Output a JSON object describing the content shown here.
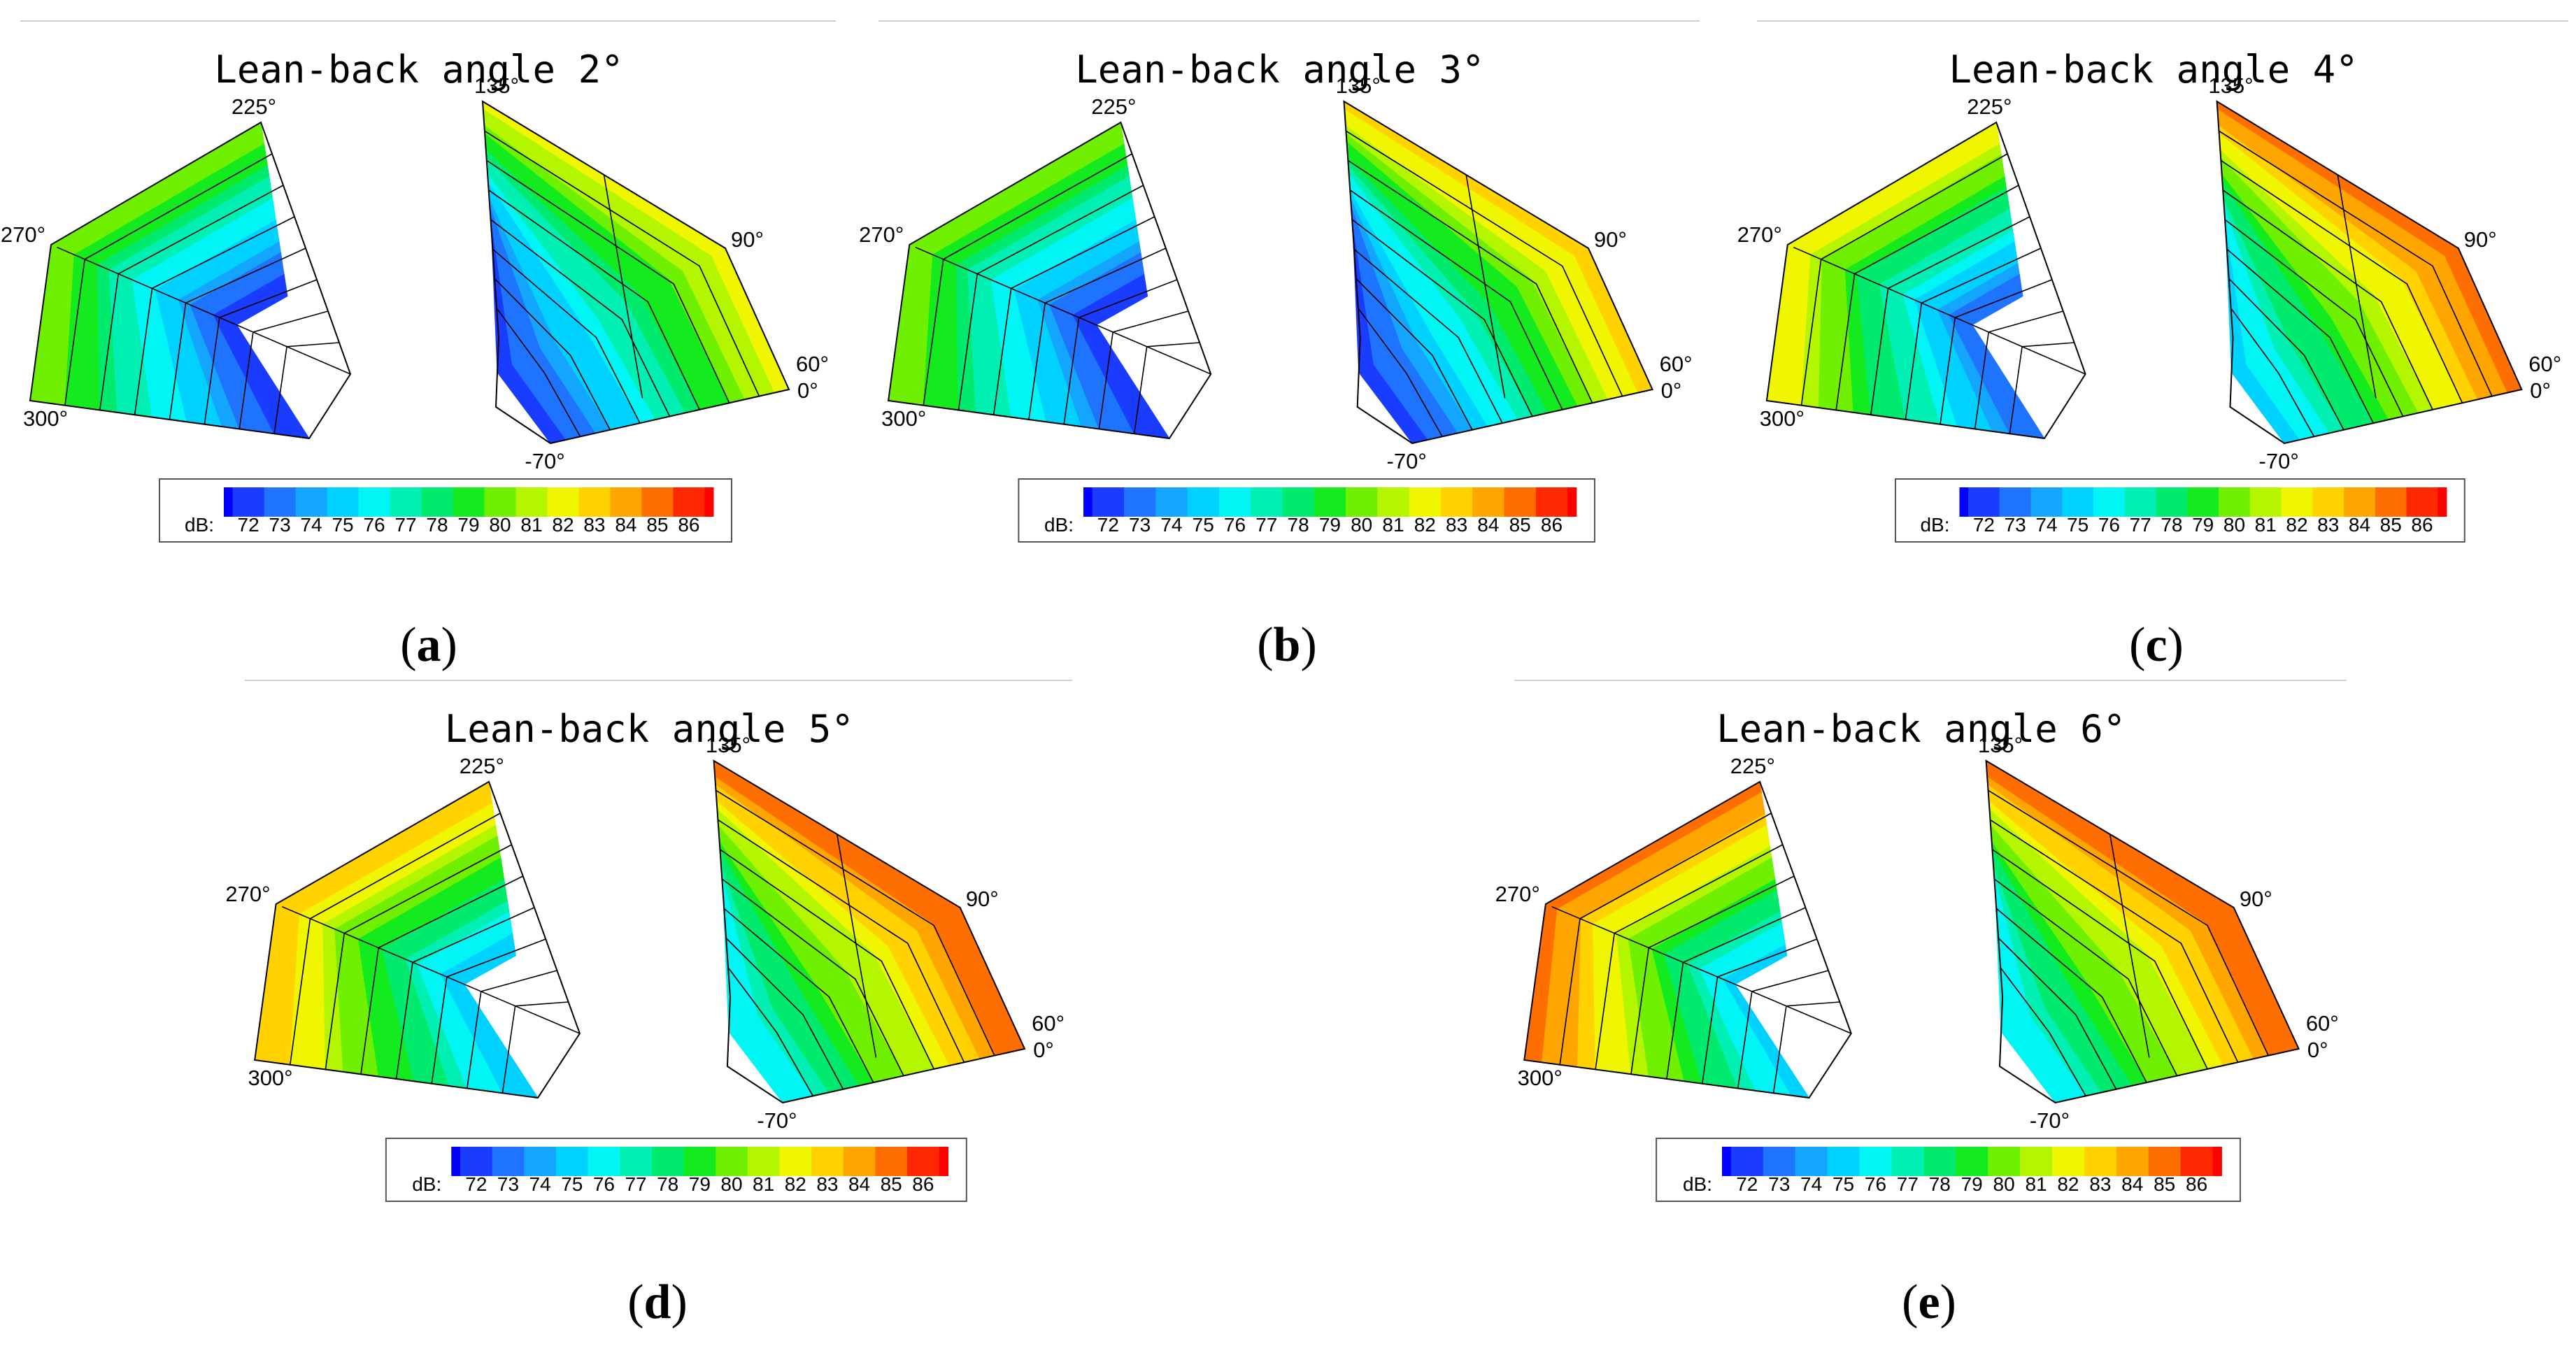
{
  "figure": {
    "colorbar": {
      "label": "dB:",
      "ticks": [
        72,
        73,
        74,
        75,
        76,
        77,
        78,
        79,
        80,
        81,
        82,
        83,
        84,
        85,
        86
      ],
      "colors": [
        "#0000ff",
        "#1a3cff",
        "#1e73ff",
        "#14a5ff",
        "#00d2ff",
        "#00f5f5",
        "#00f0b4",
        "#00eb6e",
        "#14eb1e",
        "#6ef000",
        "#b4f500",
        "#f0f500",
        "#ffd200",
        "#ffa500",
        "#ff6e00",
        "#ff2800",
        "#ff0000"
      ]
    },
    "angle_labels": [
      "225°",
      "270°",
      "300°",
      "135°",
      "90°",
      "60°",
      "0°",
      "-70°"
    ]
  },
  "chart_data": [
    {
      "type": "heatmap",
      "panel": "a",
      "caption_letter": "a",
      "title": "Lean-back angle 2°",
      "left_range": [
        72,
        81
      ],
      "right_range": [
        72,
        83
      ]
    },
    {
      "type": "heatmap",
      "panel": "b",
      "caption_letter": "b",
      "title": "Lean-back angle 3°",
      "left_range": [
        72,
        81
      ],
      "right_range": [
        72,
        84
      ]
    },
    {
      "type": "heatmap",
      "panel": "c",
      "caption_letter": "c",
      "title": "Lean-back angle 4°",
      "left_range": [
        73,
        83
      ],
      "right_range": [
        75,
        86
      ]
    },
    {
      "type": "heatmap",
      "panel": "d",
      "caption_letter": "d",
      "title": "Lean-back angle 5°",
      "left_range": [
        75,
        84
      ],
      "right_range": [
        76,
        86
      ]
    },
    {
      "type": "heatmap",
      "panel": "e",
      "caption_letter": "e",
      "title": "Lean-back angle 6°",
      "left_range": [
        75,
        86
      ],
      "right_range": [
        76,
        86
      ]
    }
  ]
}
